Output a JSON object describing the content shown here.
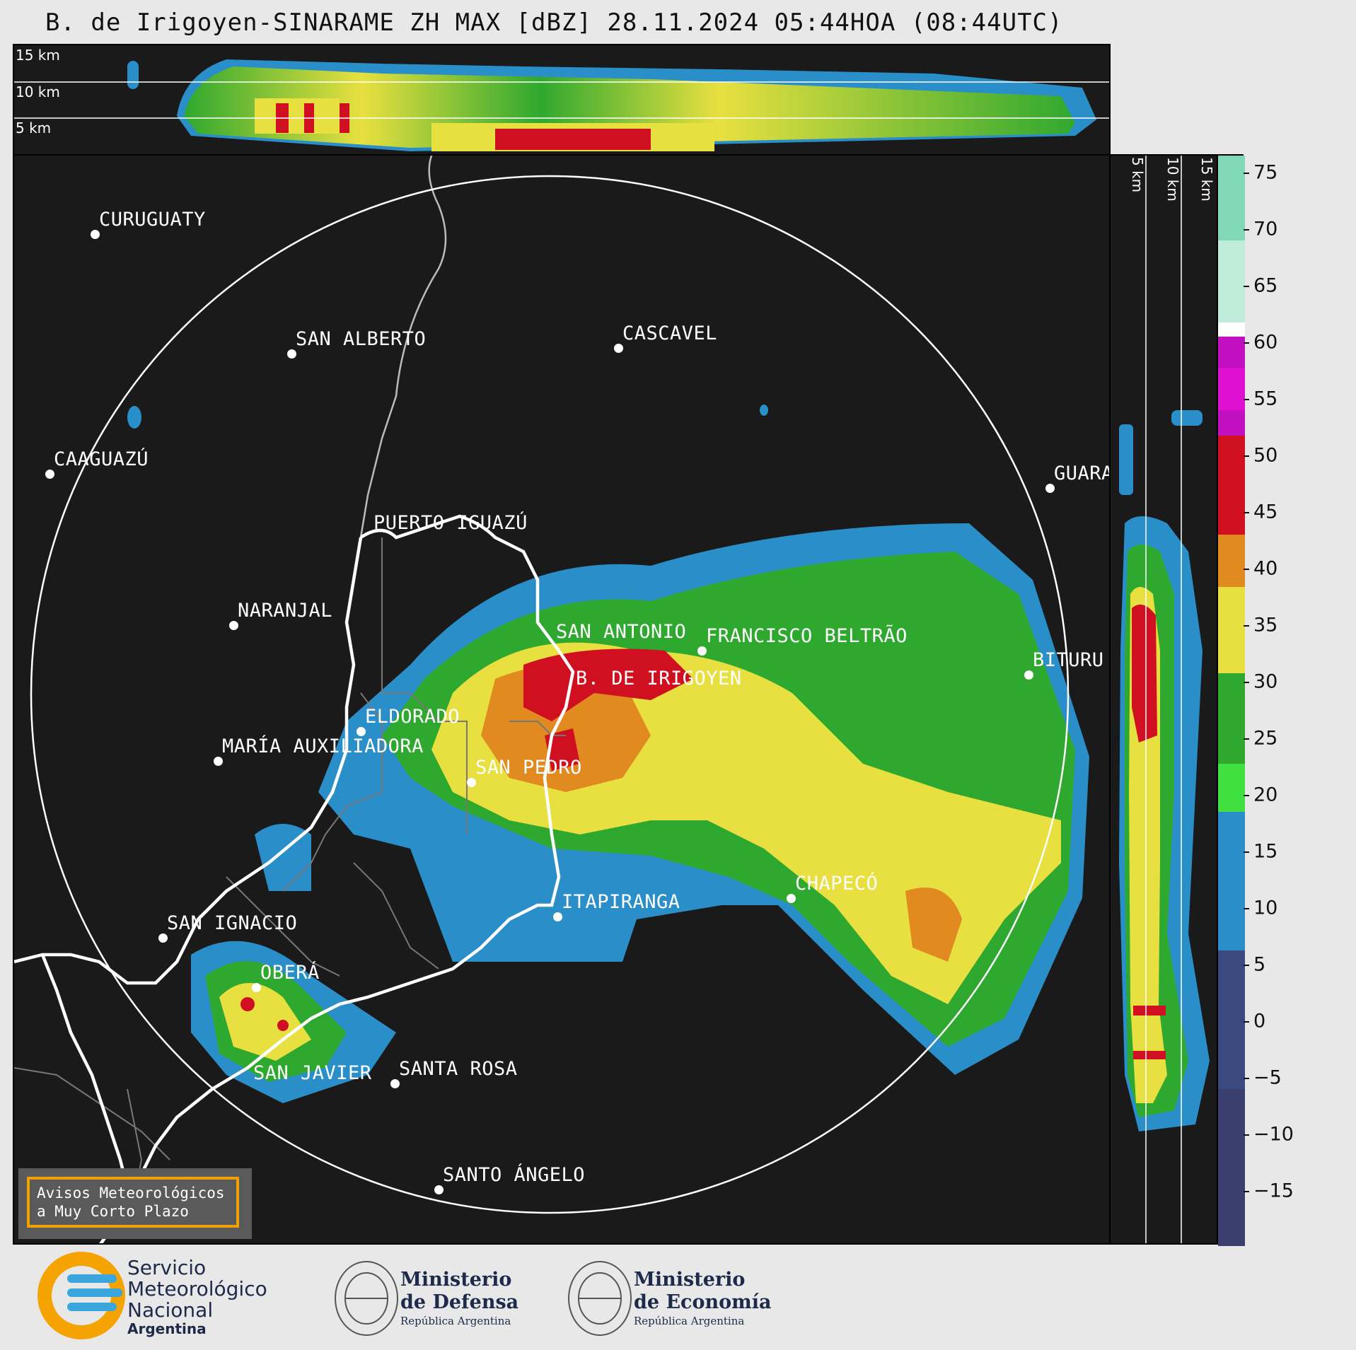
{
  "title": "B. de Irigoyen-SINARAME ZH MAX [dBZ] 28.11.2024 05:44HOA (08:44UTC)",
  "height_labels": {
    "top": [
      "15 km",
      "10 km",
      "5 km"
    ],
    "side": [
      "5 km",
      "10 km",
      "15 km"
    ]
  },
  "cities": [
    {
      "name": "CURUGUATY"
    },
    {
      "name": "SAN ALBERTO"
    },
    {
      "name": "CASCAVEL"
    },
    {
      "name": "CAAGUAZÚ"
    },
    {
      "name": "GUARA"
    },
    {
      "name": "PUERTO IGUAZÚ"
    },
    {
      "name": "NARANJAL"
    },
    {
      "name": "SAN ANTONIO"
    },
    {
      "name": "FRANCISCO BELTRÃO"
    },
    {
      "name": "BITURU"
    },
    {
      "name": "B. DE IRIGOYEN"
    },
    {
      "name": "ELDORADO"
    },
    {
      "name": "MARÍA AUXILIADORA"
    },
    {
      "name": "SAN PEDRO"
    },
    {
      "name": "CHAPECÓ"
    },
    {
      "name": "ITAPIRANGA"
    },
    {
      "name": "SAN IGNACIO"
    },
    {
      "name": "OBERÁ"
    },
    {
      "name": "SAN JAVIER"
    },
    {
      "name": "SANTA ROSA"
    },
    {
      "name": "SANTO ÁNGELO"
    }
  ],
  "colorbar": {
    "unit": "dBZ",
    "ticks": [
      "75",
      "70",
      "65",
      "60",
      "55",
      "50",
      "45",
      "40",
      "35",
      "30",
      "25",
      "20",
      "15",
      "10",
      "5",
      "0",
      "−5",
      "−10",
      "−15"
    ],
    "colors": {
      "low": "#3a3f6e",
      "blue": "#2a8fc8",
      "green": "#2fa82f",
      "yellow": "#e8e040",
      "orange": "#e08a20",
      "red": "#d01020",
      "magenta": "#e010d0",
      "white": "#ffffff",
      "mint": "#80d8b8"
    }
  },
  "notice": {
    "line1": "Avisos Meteorológicos",
    "line2": "a Muy Corto Plazo"
  },
  "footer": {
    "smn_line1": "Servicio",
    "smn_line2": "Meteorológico",
    "smn_line3": "Nacional",
    "smn_line4": "Argentina",
    "def_line1": "Ministerio",
    "def_line2": "de Defensa",
    "def_line3": "República Argentina",
    "eco_line1": "Ministerio",
    "eco_line2": "de Economía",
    "eco_line3": "República Argentina"
  }
}
